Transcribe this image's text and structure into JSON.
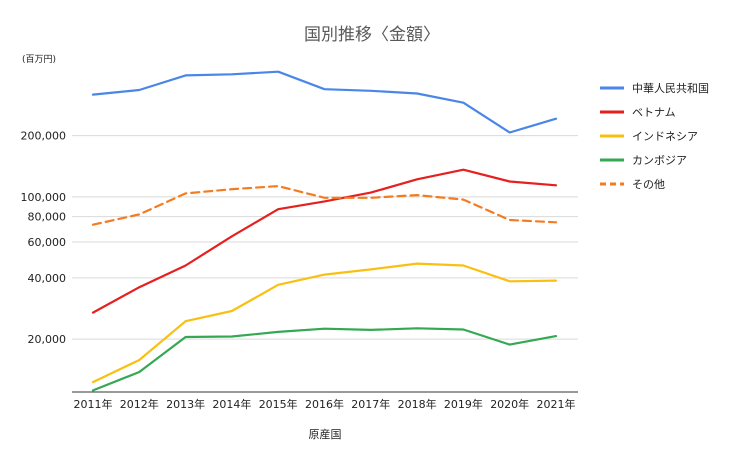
{
  "chart_data": {
    "type": "line",
    "title": "国別推移〈金額〉",
    "unit_label": "(百万円)",
    "xlabel": "原産国",
    "ylabel": "",
    "y_scale": "log",
    "ylim": [
      11000,
      420000
    ],
    "y_ticks": [
      {
        "value": 20000,
        "label": "20,000"
      },
      {
        "value": 40000,
        "label": "40,000"
      },
      {
        "value": 60000,
        "label": "60,000"
      },
      {
        "value": 80000,
        "label": "80,000"
      },
      {
        "value": 100000,
        "label": "100,000"
      },
      {
        "value": 200000,
        "label": "200,000"
      }
    ],
    "categories": [
      "2011年",
      "2012年",
      "2013年",
      "2014年",
      "2015年",
      "2016年",
      "2017年",
      "2018年",
      "2019年",
      "2020年",
      "2021年"
    ],
    "grid": true,
    "legend_position": "right",
    "series": [
      {
        "name": "中華人民共和国",
        "color": "#4a86e8",
        "dash": false,
        "values": [
          318000,
          335000,
          395000,
          400000,
          412000,
          338000,
          332000,
          322000,
          290000,
          207000,
          242000
        ]
      },
      {
        "name": "ベトナム",
        "color": "#e6201f",
        "dash": false,
        "values": [
          27000,
          36000,
          46000,
          64000,
          87000,
          95000,
          105000,
          122000,
          136000,
          119000,
          114000
        ]
      },
      {
        "name": "インドネシア",
        "color": "#f9c011",
        "dash": false,
        "values": [
          12300,
          15800,
          24500,
          27500,
          37000,
          41500,
          44000,
          47000,
          46000,
          38500,
          38800
        ]
      },
      {
        "name": "カンボジア",
        "color": "#34a853",
        "dash": false,
        "values": [
          11200,
          13800,
          20500,
          20600,
          21700,
          22500,
          22200,
          22600,
          22300,
          18800,
          20700
        ]
      },
      {
        "name": "その他",
        "color": "#f57b20",
        "dash": true,
        "values": [
          73000,
          82000,
          104000,
          109000,
          113000,
          99000,
          99000,
          102000,
          97000,
          77000,
          75000
        ]
      }
    ]
  }
}
